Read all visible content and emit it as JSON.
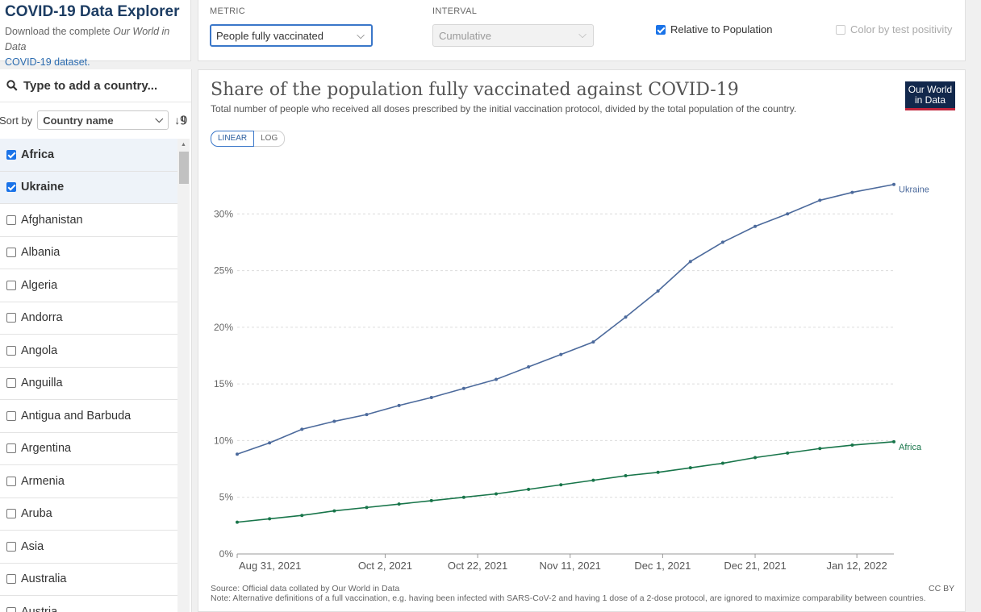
{
  "header": {
    "title": "COVID-19 Data Explorer",
    "download_prefix": "Download the complete ",
    "download_italic": "Our World in Data",
    "download_link": "COVID-19 dataset."
  },
  "controls": {
    "metric_label": "METRIC",
    "metric_value": "People fully vaccinated",
    "interval_label": "INTERVAL",
    "interval_value": "Cumulative",
    "relative_label": "Relative to Population",
    "relative_checked": true,
    "color_label": "Color by test positivity",
    "color_checked": false
  },
  "sidebar": {
    "search_placeholder": "Type to add a country...",
    "sort_label": "Sort by",
    "sort_value": "Country name",
    "countries": [
      {
        "name": "Africa",
        "checked": true
      },
      {
        "name": "Ukraine",
        "checked": true
      },
      {
        "name": "Afghanistan",
        "checked": false
      },
      {
        "name": "Albania",
        "checked": false
      },
      {
        "name": "Algeria",
        "checked": false
      },
      {
        "name": "Andorra",
        "checked": false
      },
      {
        "name": "Angola",
        "checked": false
      },
      {
        "name": "Anguilla",
        "checked": false
      },
      {
        "name": "Antigua and Barbuda",
        "checked": false
      },
      {
        "name": "Argentina",
        "checked": false
      },
      {
        "name": "Armenia",
        "checked": false
      },
      {
        "name": "Aruba",
        "checked": false
      },
      {
        "name": "Asia",
        "checked": false
      },
      {
        "name": "Australia",
        "checked": false
      },
      {
        "name": "Austria",
        "checked": false
      }
    ]
  },
  "chart": {
    "title": "Share of the population fully vaccinated against COVID-19",
    "subtitle": "Total number of people who received all doses prescribed by the initial vaccination protocol, divided by the total population of the country.",
    "logo_line1": "Our World",
    "logo_line2": "in Data",
    "scale_linear": "LINEAR",
    "scale_log": "LOG",
    "source": "Source: Official data collated by Our World in Data",
    "note": "Note: Alternative definitions of a full vaccination, e.g. having been infected with SARS-CoV-2 and having 1 dose of a 2-dose protocol, are ignored to maximize comparability between countries.",
    "license": "CC BY"
  },
  "chart_data": {
    "type": "line",
    "title": "Share of the population fully vaccinated against COVID-19",
    "ylim": [
      0,
      35
    ],
    "y_ticks": [
      "0%",
      "5%",
      "10%",
      "15%",
      "20%",
      "25%",
      "30%"
    ],
    "x_ticks": [
      "Aug 31, 2021",
      "Oct 2, 2021",
      "Oct 22, 2021",
      "Nov 11, 2021",
      "Dec 1, 2021",
      "Dec 21, 2021",
      "Jan 12, 2022"
    ],
    "grid": true,
    "series": [
      {
        "name": "Ukraine",
        "color": "#4c6a9c",
        "points": [
          [
            "2021-08-31",
            8.8
          ],
          [
            "2021-09-07",
            9.8
          ],
          [
            "2021-09-14",
            11.0
          ],
          [
            "2021-09-21",
            11.7
          ],
          [
            "2021-09-28",
            12.3
          ],
          [
            "2021-10-05",
            13.1
          ],
          [
            "2021-10-12",
            13.8
          ],
          [
            "2021-10-19",
            14.6
          ],
          [
            "2021-10-26",
            15.4
          ],
          [
            "2021-11-02",
            16.5
          ],
          [
            "2021-11-09",
            17.6
          ],
          [
            "2021-11-16",
            18.7
          ],
          [
            "2021-11-23",
            20.9
          ],
          [
            "2021-11-30",
            23.2
          ],
          [
            "2021-12-07",
            25.8
          ],
          [
            "2021-12-14",
            27.5
          ],
          [
            "2021-12-21",
            28.9
          ],
          [
            "2021-12-28",
            30.0
          ],
          [
            "2022-01-04",
            31.2
          ],
          [
            "2022-01-11",
            31.9
          ],
          [
            "2022-01-20",
            32.6
          ]
        ]
      },
      {
        "name": "Africa",
        "color": "#18754a",
        "points": [
          [
            "2021-08-31",
            2.8
          ],
          [
            "2021-09-07",
            3.1
          ],
          [
            "2021-09-14",
            3.4
          ],
          [
            "2021-09-21",
            3.8
          ],
          [
            "2021-09-28",
            4.1
          ],
          [
            "2021-10-05",
            4.4
          ],
          [
            "2021-10-12",
            4.7
          ],
          [
            "2021-10-19",
            5.0
          ],
          [
            "2021-10-26",
            5.3
          ],
          [
            "2021-11-02",
            5.7
          ],
          [
            "2021-11-09",
            6.1
          ],
          [
            "2021-11-16",
            6.5
          ],
          [
            "2021-11-23",
            6.9
          ],
          [
            "2021-11-30",
            7.2
          ],
          [
            "2021-12-07",
            7.6
          ],
          [
            "2021-12-14",
            8.0
          ],
          [
            "2021-12-21",
            8.5
          ],
          [
            "2021-12-28",
            8.9
          ],
          [
            "2022-01-04",
            9.3
          ],
          [
            "2022-01-11",
            9.6
          ],
          [
            "2022-01-20",
            9.9
          ]
        ]
      }
    ]
  }
}
